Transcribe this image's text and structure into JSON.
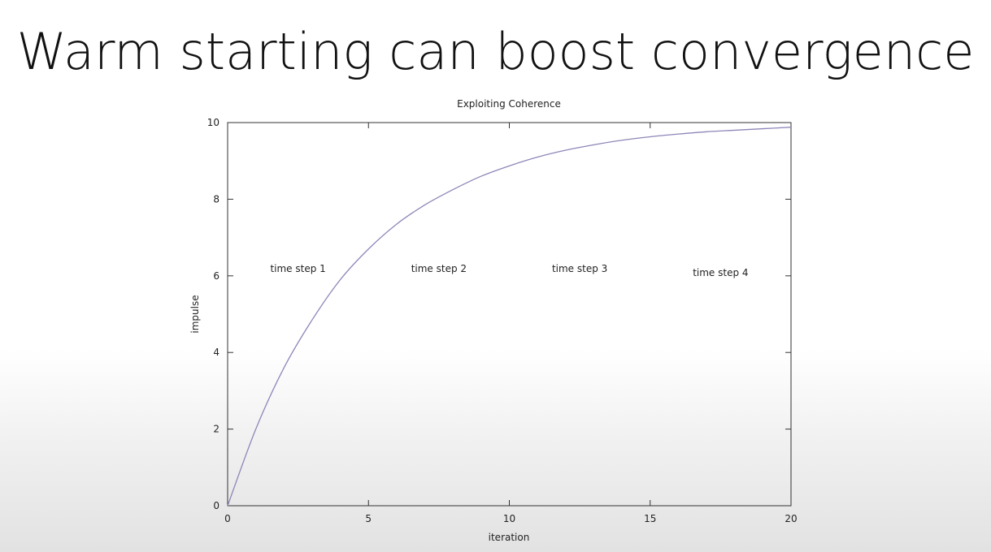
{
  "slide": {
    "title": "Warm starting can boost convergence"
  },
  "chart_data": {
    "type": "line",
    "title": "Exploiting Coherence",
    "xlabel": "iteration",
    "ylabel": "impulse",
    "xlim": [
      0,
      20
    ],
    "ylim": [
      0,
      10
    ],
    "x_ticks": [
      0,
      5,
      10,
      15,
      20
    ],
    "y_ticks": [
      0,
      2,
      4,
      6,
      8,
      10
    ],
    "grid": false,
    "legend": "none",
    "series": [
      {
        "color": "#8f86b8",
        "x": [
          0,
          1,
          2,
          3,
          4,
          5,
          6,
          7,
          8,
          9,
          10,
          11,
          12,
          13,
          14,
          15,
          16,
          17,
          18,
          19,
          20
        ],
        "y": [
          0,
          2.0,
          3.6,
          4.85,
          5.9,
          6.7,
          7.35,
          7.85,
          8.25,
          8.6,
          8.87,
          9.1,
          9.28,
          9.42,
          9.54,
          9.63,
          9.7,
          9.76,
          9.8,
          9.84,
          9.88
        ]
      }
    ],
    "annotations": [
      {
        "text": "time step 1",
        "x": 2.5,
        "y": 6.1
      },
      {
        "text": "time step 2",
        "x": 7.5,
        "y": 6.1
      },
      {
        "text": "time step 3",
        "x": 12.5,
        "y": 6.1
      },
      {
        "text": "time step 4",
        "x": 17.5,
        "y": 6.0
      }
    ]
  }
}
